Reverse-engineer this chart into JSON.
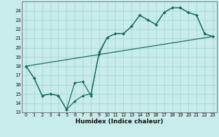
{
  "xlabel": "Humidex (Indice chaleur)",
  "bg_color": "#c8ecea",
  "line_color": "#1a6b60",
  "xlim": [
    -0.5,
    23.5
  ],
  "ylim": [
    13,
    25
  ],
  "curve1_x": [
    0,
    1,
    2,
    3,
    4,
    5,
    6,
    7,
    8,
    9,
    10,
    11,
    12,
    13,
    14,
    15,
    16,
    17,
    18,
    19,
    20,
    21,
    22,
    23
  ],
  "curve1_y": [
    18.0,
    16.7,
    14.8,
    15.0,
    14.8,
    13.3,
    14.2,
    14.8,
    15.0,
    19.3,
    21.1,
    21.5,
    21.5,
    22.3,
    23.5,
    23.0,
    22.5,
    23.8,
    24.3,
    24.3,
    23.8,
    23.5,
    21.5,
    21.2
  ],
  "curve2_x": [
    0,
    1,
    2,
    3,
    4,
    5,
    6,
    7,
    8,
    9,
    10,
    11,
    12,
    13,
    14,
    15,
    16,
    17,
    18,
    19,
    20,
    21,
    22,
    23
  ],
  "curve2_y": [
    18.0,
    16.7,
    14.8,
    15.0,
    14.8,
    13.3,
    16.2,
    16.3,
    14.8,
    19.5,
    21.1,
    21.5,
    21.5,
    22.3,
    23.5,
    23.0,
    22.5,
    23.8,
    24.3,
    24.3,
    23.8,
    23.5,
    21.5,
    21.2
  ],
  "line3_x": [
    0,
    23
  ],
  "line3_y": [
    18.0,
    21.2
  ],
  "grid_color": "#9ed4d0",
  "grid_major_color": "#80c0bc",
  "xlabel_fontsize": 6.5,
  "tick_fontsize": 4.8
}
